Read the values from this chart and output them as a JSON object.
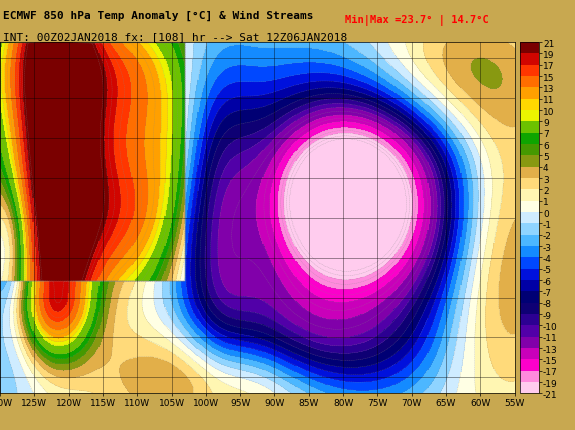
{
  "title_line1": "ECMWF 850 hPa Temp Anomaly [°C] & Wind Streams",
  "title_line2": "INT: 00Z02JAN2018 fx: [108] hr --> Sat 12Z06JAN2018",
  "minmax_text": "Min|Max =23.7° | 14.7°C",
  "minmax_color": "#ff0000",
  "colorbar_levels": [
    -21,
    -19,
    -17,
    -15,
    -13,
    -11,
    -10,
    -9,
    -8,
    -7,
    -6,
    -5,
    -4,
    -3,
    -2,
    -1,
    0,
    1,
    2,
    3,
    4,
    5,
    6,
    7,
    9,
    10,
    11,
    13,
    15,
    17,
    19,
    21
  ],
  "colorbar_colors": [
    "#ff88ee",
    "#ff55dd",
    "#ff00cc",
    "#cc00bb",
    "#9900aa",
    "#660099",
    "#440088",
    "#220077",
    "#110066",
    "#0000aa",
    "#0000dd",
    "#0033ff",
    "#0077ff",
    "#00aaff",
    "#44ccff",
    "#88eeff",
    "#ffffff",
    "#ffffaa",
    "#ffee66",
    "#ffcc33",
    "#ff9900",
    "#ff6600",
    "#ff3300",
    "#dd1100",
    "#bb0000",
    "#990000",
    "#cc8866",
    "#bb9988",
    "#ccaabb",
    "#ddbbcc",
    "#eeccdd",
    "#ffddee"
  ],
  "fig_bg_color": "#c8a850",
  "lon_min": -130,
  "lon_max": -55,
  "lat_min": 18,
  "lat_max": 62,
  "title_fontsize": 8,
  "tick_fontsize": 6.5,
  "colorbar_label_fontsize": 6.5
}
